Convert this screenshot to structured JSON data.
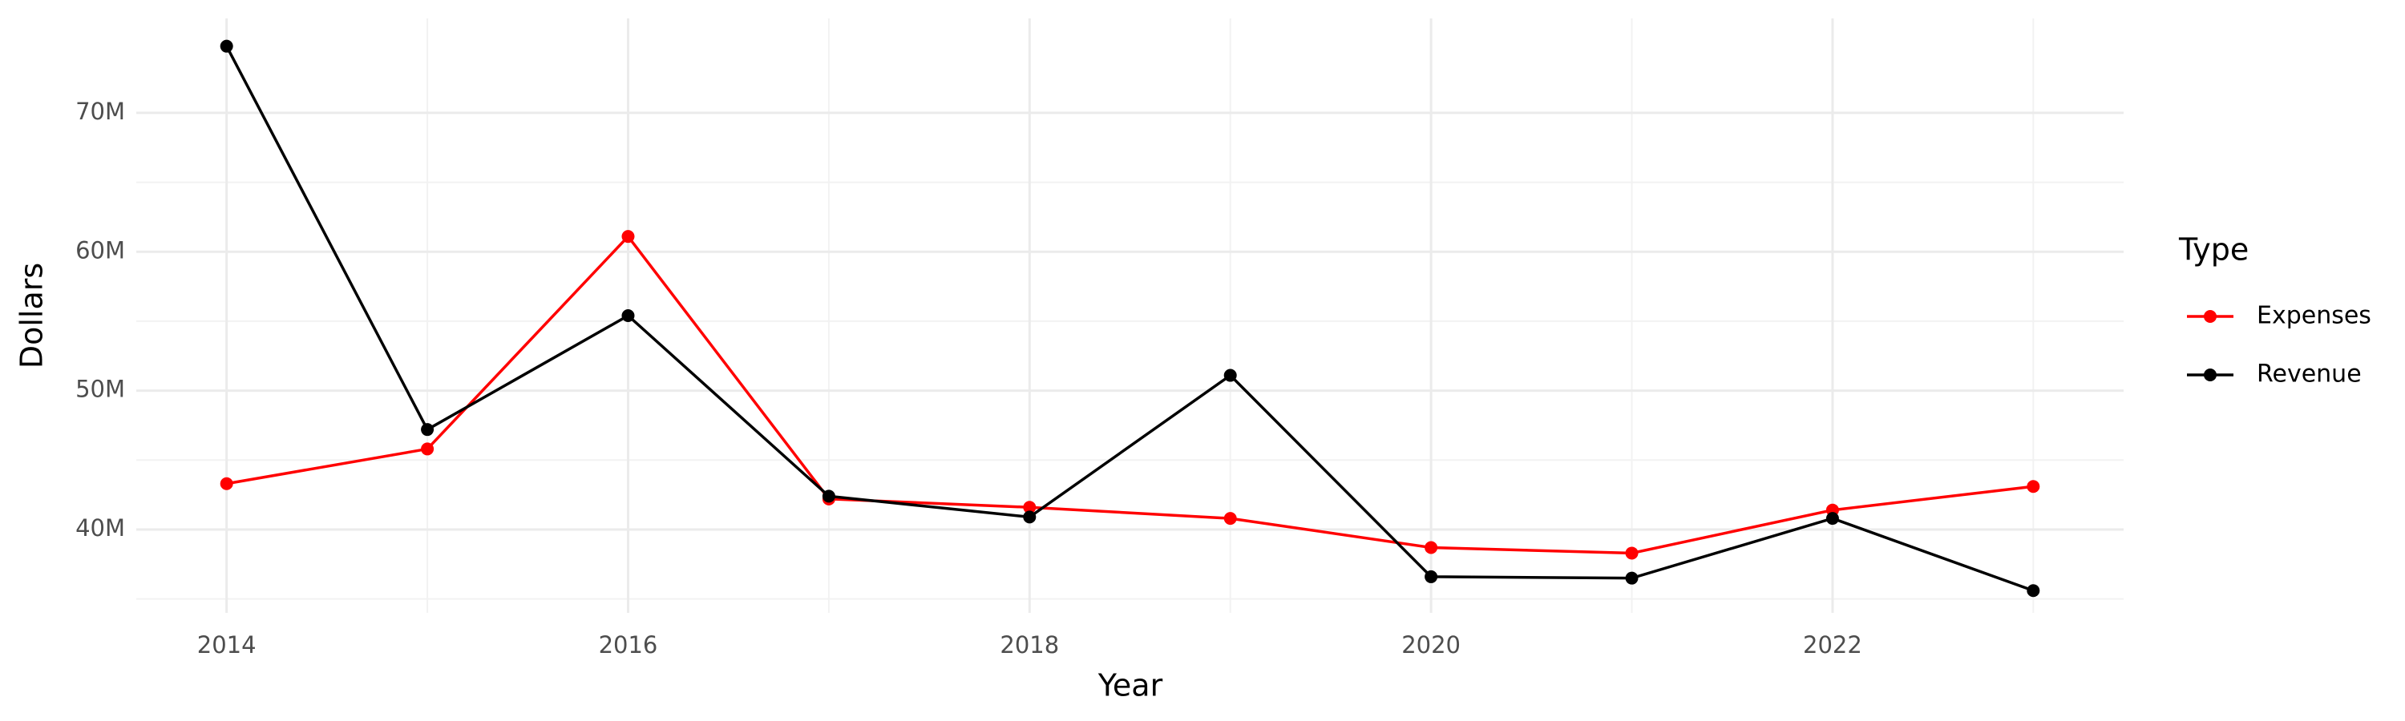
{
  "chart_data": {
    "type": "line",
    "x_label": "Year",
    "y_label": "Dollars",
    "legend_title": "Type",
    "x": [
      2014,
      2015,
      2016,
      2017,
      2018,
      2019,
      2020,
      2021,
      2022,
      2023
    ],
    "series": [
      {
        "name": "Expenses",
        "color": "#ff0000",
        "values": [
          43300000,
          45800000,
          61100000,
          42200000,
          41600000,
          40800000,
          38700000,
          38300000,
          41400000,
          43100000
        ]
      },
      {
        "name": "Revenue",
        "color": "#000000",
        "values": [
          74800000,
          47200000,
          55400000,
          42400000,
          40900000,
          51100000,
          36600000,
          36500000,
          40800000,
          35600000
        ]
      }
    ],
    "xlim": [
      2013.55,
      2023.45
    ],
    "xticks": [
      2014,
      2016,
      2018,
      2020,
      2022
    ],
    "ylim": [
      34000000,
      76800000
    ],
    "yticks": [
      {
        "value": 40000000,
        "label": "40M"
      },
      {
        "value": 50000000,
        "label": "50M"
      },
      {
        "value": 60000000,
        "label": "60M"
      },
      {
        "value": 70000000,
        "label": "70M"
      }
    ],
    "grid": true,
    "legend": "right"
  }
}
